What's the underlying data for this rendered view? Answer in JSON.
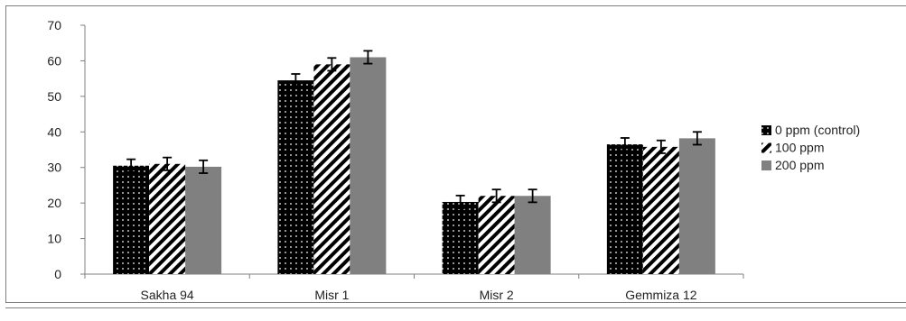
{
  "chart_data": {
    "type": "bar",
    "categories": [
      "Sakha 94",
      "Misr 1",
      "Misr 2",
      "Gemmiza 12"
    ],
    "series": [
      {
        "name": "0 ppm (control)",
        "values": [
          30.5,
          54.5,
          20.3,
          36.5
        ],
        "errors": [
          1.8,
          1.8,
          1.8,
          1.8
        ],
        "pattern": "dots",
        "color": "#000000"
      },
      {
        "name": "100 ppm",
        "values": [
          31.0,
          59.0,
          22.0,
          35.8
        ],
        "errors": [
          1.8,
          1.8,
          1.8,
          1.8
        ],
        "pattern": "diagonal-stripes",
        "color": "#000000"
      },
      {
        "name": "200 ppm",
        "values": [
          30.2,
          61.0,
          22.0,
          38.2
        ],
        "errors": [
          1.8,
          1.8,
          1.8,
          1.8
        ],
        "pattern": "solid",
        "color": "#808080"
      }
    ],
    "title": "",
    "xlabel": "",
    "ylabel": "",
    "ylim": [
      0,
      70
    ],
    "yticks": [
      0,
      10,
      20,
      30,
      40,
      50,
      60,
      70
    ],
    "grid": false,
    "legend_position": "right"
  }
}
